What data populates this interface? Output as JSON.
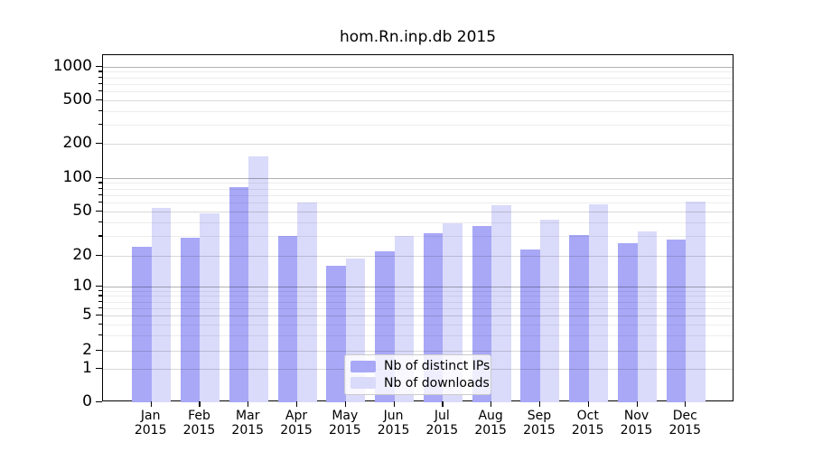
{
  "chart_data": {
    "type": "bar",
    "title": "hom.Rn.inp.db 2015",
    "categories": [
      {
        "month": "Jan",
        "year": "2015"
      },
      {
        "month": "Feb",
        "year": "2015"
      },
      {
        "month": "Mar",
        "year": "2015"
      },
      {
        "month": "Apr",
        "year": "2015"
      },
      {
        "month": "May",
        "year": "2015"
      },
      {
        "month": "Jun",
        "year": "2015"
      },
      {
        "month": "Jul",
        "year": "2015"
      },
      {
        "month": "Aug",
        "year": "2015"
      },
      {
        "month": "Sep",
        "year": "2015"
      },
      {
        "month": "Oct",
        "year": "2015"
      },
      {
        "month": "Nov",
        "year": "2015"
      },
      {
        "month": "Dec",
        "year": "2015"
      }
    ],
    "series": [
      {
        "name": "Nb of distinct IPs",
        "color": "#a8a8f7",
        "values": [
          24,
          29,
          82,
          30,
          16,
          22,
          32,
          37,
          23,
          31,
          26,
          28
        ]
      },
      {
        "name": "Nb of downloads",
        "color": "#dadafa",
        "values": [
          54,
          48,
          156,
          60,
          19,
          30,
          39,
          57,
          42,
          58,
          33,
          61
        ]
      }
    ],
    "yscale": "symlog",
    "yticks": [
      0,
      1,
      2,
      5,
      10,
      20,
      50,
      100,
      200,
      500,
      1000
    ],
    "ylim": [
      0,
      1300
    ],
    "xlabel": "",
    "ylabel": "",
    "grid": true,
    "legend_position": "lower center"
  }
}
